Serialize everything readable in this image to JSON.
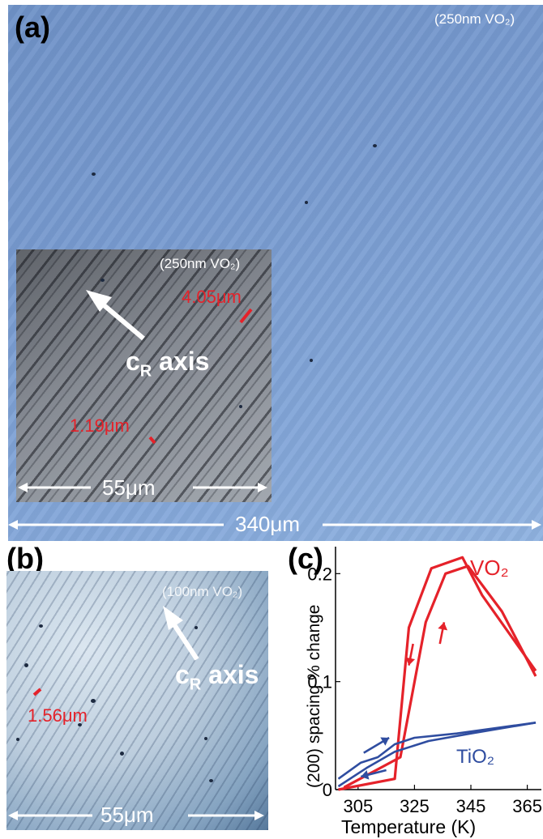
{
  "panels": {
    "a": {
      "label": "(a)",
      "sample": "(250nm VO₂)",
      "scale": "340μm",
      "inset": {
        "sample": "(250nm VO₂)",
        "arrow_label_main": "c",
        "arrow_label_sub": "R",
        "arrow_label_rest": " axis",
        "measure_1": "4.05μm",
        "measure_2": "1.19μm",
        "scale": "55μm"
      }
    },
    "b": {
      "label": "(b)",
      "sample": "(100nm VO₂)",
      "arrow_label_main": "c",
      "arrow_label_sub": "R",
      "arrow_label_rest": " axis",
      "measure": "1.56μm",
      "scale": "55μm"
    },
    "c": {
      "label": "(c)"
    }
  },
  "chart_data": {
    "type": "line",
    "xlabel": "Temperature (K)",
    "ylabel": "(200) spacing % change",
    "xlim": [
      297,
      370
    ],
    "ylim": [
      0,
      0.225
    ],
    "xticks": [
      305,
      325,
      345,
      365
    ],
    "yticks": [
      0,
      0.1,
      0.2
    ],
    "ytick_labels": [
      "0",
      "0.1",
      "0.2"
    ],
    "series": [
      {
        "name": "VO₂",
        "color": "#e5222a",
        "x": [
          298,
          318,
          323,
          331,
          342,
          349,
          368
        ],
        "y": [
          0.0,
          0.01,
          0.15,
          0.205,
          0.215,
          0.18,
          0.11
        ]
      },
      {
        "name": "VO₂",
        "color": "#e5222a",
        "x": [
          300,
          320,
          329,
          336,
          344,
          356,
          368
        ],
        "y": [
          0.002,
          0.03,
          0.155,
          0.2,
          0.207,
          0.165,
          0.105
        ]
      },
      {
        "name": "TiO₂",
        "color": "#2f4da0",
        "x": [
          298,
          306,
          312,
          318,
          325,
          340,
          368
        ],
        "y": [
          0.01,
          0.025,
          0.03,
          0.042,
          0.048,
          0.052,
          0.062
        ]
      },
      {
        "name": "TiO₂",
        "color": "#2f4da0",
        "x": [
          298,
          308,
          318,
          330,
          345,
          368
        ],
        "y": [
          0.003,
          0.02,
          0.035,
          0.045,
          0.052,
          0.062
        ]
      }
    ],
    "legend": [
      {
        "text": "VO₂",
        "color": "#e5222a"
      },
      {
        "text": "TiO₂",
        "color": "#2f4da0"
      }
    ]
  }
}
